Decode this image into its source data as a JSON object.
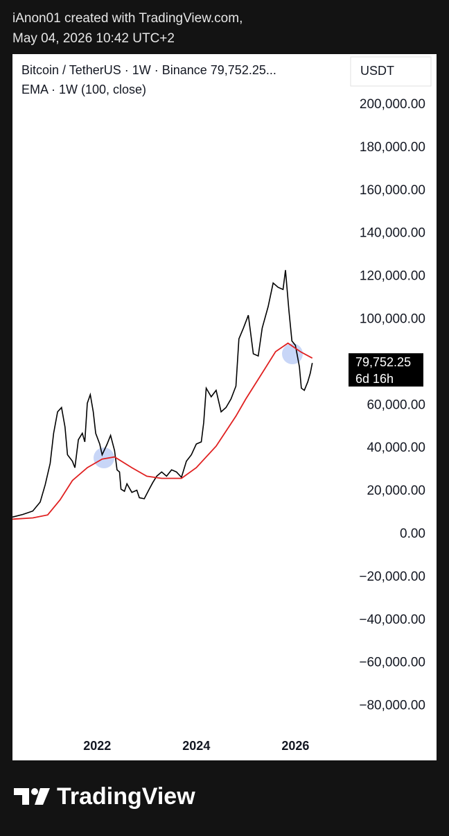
{
  "header": {
    "line1": "iAnon01 created with TradingView.com,",
    "line2": "May 04, 2026 10:42 UTC+2"
  },
  "footer": {
    "brand": "TradingView"
  },
  "chart_data": {
    "type": "line",
    "axis_unit": "USDT",
    "last_price_label": "79,752.25",
    "countdown": "6d 16h",
    "xlim": [
      2020.29,
      2027.03
    ],
    "xticks": [
      2022,
      2024,
      2026
    ],
    "ylim": [
      -105000,
      221000
    ],
    "yticks": [
      {
        "value": 200000,
        "label": "200,000.00"
      },
      {
        "value": 180000,
        "label": "180,000.00"
      },
      {
        "value": 160000,
        "label": "160,000.00"
      },
      {
        "value": 140000,
        "label": "140,000.00"
      },
      {
        "value": 120000,
        "label": "120,000.00"
      },
      {
        "value": 100000,
        "label": "100,000.00"
      },
      {
        "value": 60000,
        "label": "60,000.00"
      },
      {
        "value": 40000,
        "label": "40,000.00"
      },
      {
        "value": 20000,
        "label": "20,000.00"
      },
      {
        "value": 0,
        "label": "0.00"
      },
      {
        "value": -20000,
        "label": "−20,000.00"
      },
      {
        "value": -40000,
        "label": "−40,000.00"
      },
      {
        "value": -60000,
        "label": "−60,000.00"
      },
      {
        "value": -80000,
        "label": "−80,000.00"
      }
    ],
    "series": [
      {
        "name": "Bitcoin / TetherUS · 1W · Binance 79,752.25...",
        "color": "#000000",
        "x": [
          2020.29,
          2020.5,
          2020.7,
          2020.85,
          2020.95,
          2021.05,
          2021.12,
          2021.2,
          2021.28,
          2021.35,
          2021.4,
          2021.5,
          2021.55,
          2021.62,
          2021.7,
          2021.75,
          2021.8,
          2021.86,
          2021.92,
          2021.97,
          2022.05,
          2022.1,
          2022.2,
          2022.27,
          2022.35,
          2022.4,
          2022.45,
          2022.48,
          2022.55,
          2022.6,
          2022.7,
          2022.8,
          2022.85,
          2022.95,
          2023.05,
          2023.12,
          2023.2,
          2023.3,
          2023.4,
          2023.5,
          2023.6,
          2023.7,
          2023.8,
          2023.9,
          2024.0,
          2024.1,
          2024.15,
          2024.2,
          2024.3,
          2024.4,
          2024.5,
          2024.6,
          2024.7,
          2024.8,
          2024.86,
          2024.95,
          2025.05,
          2025.15,
          2025.25,
          2025.33,
          2025.45,
          2025.55,
          2025.65,
          2025.75,
          2025.8,
          2025.87,
          2025.93,
          2026.0,
          2026.08,
          2026.12,
          2026.18,
          2026.25,
          2026.3,
          2026.34
        ],
        "values": [
          8000,
          9200,
          10800,
          15000,
          23000,
          33000,
          47000,
          57000,
          59000,
          50000,
          37000,
          34000,
          31000,
          44000,
          47000,
          43000,
          61000,
          65000,
          57000,
          47000,
          42000,
          37000,
          42000,
          46000,
          39000,
          30000,
          29000,
          21000,
          20000,
          23500,
          19500,
          20500,
          17000,
          16500,
          21000,
          24000,
          27000,
          29000,
          27000,
          30000,
          29000,
          26500,
          34000,
          37000,
          42000,
          43000,
          52000,
          68000,
          64000,
          67000,
          57000,
          59000,
          63000,
          69000,
          91000,
          96000,
          102000,
          84000,
          83000,
          96000,
          106000,
          117000,
          115000,
          114000,
          123000,
          104000,
          90000,
          88000,
          78000,
          68000,
          67000,
          71000,
          75000,
          79752.25
        ]
      },
      {
        "name": "EMA · 1W (100, close)",
        "color": "#e02020",
        "x": [
          2020.29,
          2020.7,
          2021.0,
          2021.25,
          2021.5,
          2021.8,
          2022.1,
          2022.35,
          2022.7,
          2023.0,
          2023.3,
          2023.7,
          2024.0,
          2024.4,
          2024.8,
          2025.0,
          2025.3,
          2025.6,
          2025.85,
          2026.1,
          2026.34
        ],
        "values": [
          7000,
          7600,
          9000,
          16000,
          25000,
          31000,
          35000,
          36000,
          31000,
          27000,
          26000,
          26000,
          31000,
          41000,
          55000,
          63000,
          74000,
          85000,
          89000,
          85000,
          82000
        ]
      }
    ]
  }
}
